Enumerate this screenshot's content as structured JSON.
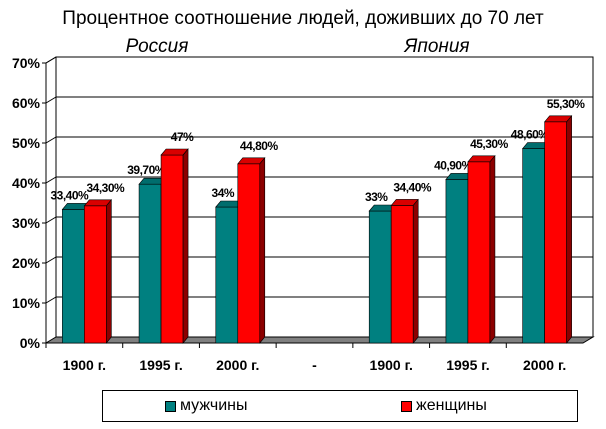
{
  "chart_data": {
    "type": "bar",
    "title": "Процентное  соотношение людей, доживших до 70 лет",
    "group_labels": [
      {
        "label": "Россия",
        "categories": [
          0,
          1,
          2
        ]
      },
      {
        "label": "Япония",
        "categories": [
          4,
          5,
          6
        ]
      }
    ],
    "categories": [
      "1900 г.",
      "1995 г.",
      "2000 г.",
      "-",
      "1900 г.",
      "1995 г.",
      "2000 г."
    ],
    "series": [
      {
        "name": "мужчины",
        "color": "#008080",
        "values": [
          33.4,
          39.7,
          34,
          null,
          33,
          40.9,
          48.6
        ],
        "labels": [
          "33,40%",
          "39,70%",
          "34%",
          "",
          "33%",
          "40,90%",
          "48,60%"
        ]
      },
      {
        "name": "женщины",
        "color": "#ff0000",
        "values": [
          34.3,
          47,
          44.8,
          null,
          34.4,
          45.3,
          55.3
        ],
        "labels": [
          "34,30%",
          "47%",
          "44,80%",
          "",
          "34,40%",
          "45,30%",
          "55,30%"
        ]
      }
    ],
    "y_ticks": [
      "0%",
      "10%",
      "20%",
      "30%",
      "40%",
      "50%",
      "60%",
      "70%"
    ],
    "ylim": [
      0,
      70
    ],
    "grid": true,
    "legend_position": "bottom"
  }
}
